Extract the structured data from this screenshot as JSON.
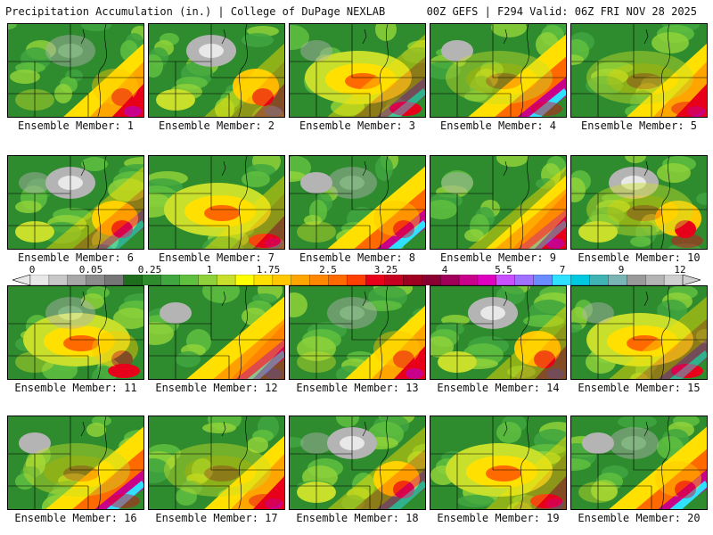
{
  "header": {
    "left": "Precipitation Accumulation (in.) | College of DuPage NEXLAB",
    "right": "00Z GEFS | F294 Valid: 06Z FRI NOV 28 2025"
  },
  "colorbar": {
    "labels": [
      "0",
      "0.05",
      "0.25",
      "1",
      "1.75",
      "2.5",
      "3.25",
      "4",
      "5.5",
      "7",
      "9",
      "12"
    ],
    "colors": [
      "#e8e8e8",
      "#c8c8c8",
      "#a8a8a8",
      "#8c8c8c",
      "#767676",
      "#1e6e1e",
      "#2e8b2e",
      "#40a640",
      "#5fbf3f",
      "#8ed13a",
      "#c8e02c",
      "#ffff00",
      "#ffe000",
      "#ffc800",
      "#ffa500",
      "#ff8800",
      "#ff6a00",
      "#ff4000",
      "#e8001a",
      "#c80020",
      "#a00020",
      "#8a0030",
      "#a0005a",
      "#c8008a",
      "#e000c0",
      "#c850ff",
      "#a070ff",
      "#6a8cff",
      "#2fe0ff",
      "#00c8e0",
      "#40b4b4",
      "#7ab4b4",
      "#9a9a9a",
      "#b4b4b4",
      "#d0d0d0"
    ]
  },
  "panels": [
    {
      "label": "Ensemble Member: 1",
      "scheme": [
        0,
        1,
        2,
        3
      ]
    },
    {
      "label": "Ensemble Member: 2",
      "scheme": [
        1,
        0,
        3,
        2
      ]
    },
    {
      "label": "Ensemble Member: 3",
      "scheme": [
        2,
        3,
        0,
        1
      ]
    },
    {
      "label": "Ensemble Member: 4",
      "scheme": [
        3,
        2,
        1,
        0
      ]
    },
    {
      "label": "Ensemble Member: 5",
      "scheme": [
        0,
        2,
        1,
        3
      ]
    },
    {
      "label": "Ensemble Member: 6",
      "scheme": [
        1,
        3,
        2,
        0
      ]
    },
    {
      "label": "Ensemble Member: 7",
      "scheme": [
        2,
        0,
        3,
        1
      ]
    },
    {
      "label": "Ensemble Member: 8",
      "scheme": [
        3,
        1,
        0,
        2
      ]
    },
    {
      "label": "Ensemble Member: 9",
      "scheme": [
        0,
        3,
        2,
        1
      ]
    },
    {
      "label": "Ensemble Member: 10",
      "scheme": [
        1,
        2,
        0,
        3
      ]
    },
    {
      "label": "Ensemble Member: 11",
      "scheme": [
        2,
        1,
        3,
        0
      ]
    },
    {
      "label": "Ensemble Member: 12",
      "scheme": [
        3,
        0,
        1,
        2
      ]
    },
    {
      "label": "Ensemble Member: 13",
      "scheme": [
        0,
        1,
        3,
        2
      ]
    },
    {
      "label": "Ensemble Member: 14",
      "scheme": [
        1,
        0,
        2,
        3
      ]
    },
    {
      "label": "Ensemble Member: 15",
      "scheme": [
        2,
        3,
        1,
        0
      ]
    },
    {
      "label": "Ensemble Member: 16",
      "scheme": [
        3,
        2,
        0,
        1
      ]
    },
    {
      "label": "Ensemble Member: 17",
      "scheme": [
        0,
        2,
        3,
        1
      ]
    },
    {
      "label": "Ensemble Member: 18",
      "scheme": [
        1,
        3,
        0,
        2
      ]
    },
    {
      "label": "Ensemble Member: 19",
      "scheme": [
        2,
        0,
        1,
        3
      ]
    },
    {
      "label": "Ensemble Member: 20",
      "scheme": [
        3,
        1,
        2,
        0
      ]
    }
  ]
}
